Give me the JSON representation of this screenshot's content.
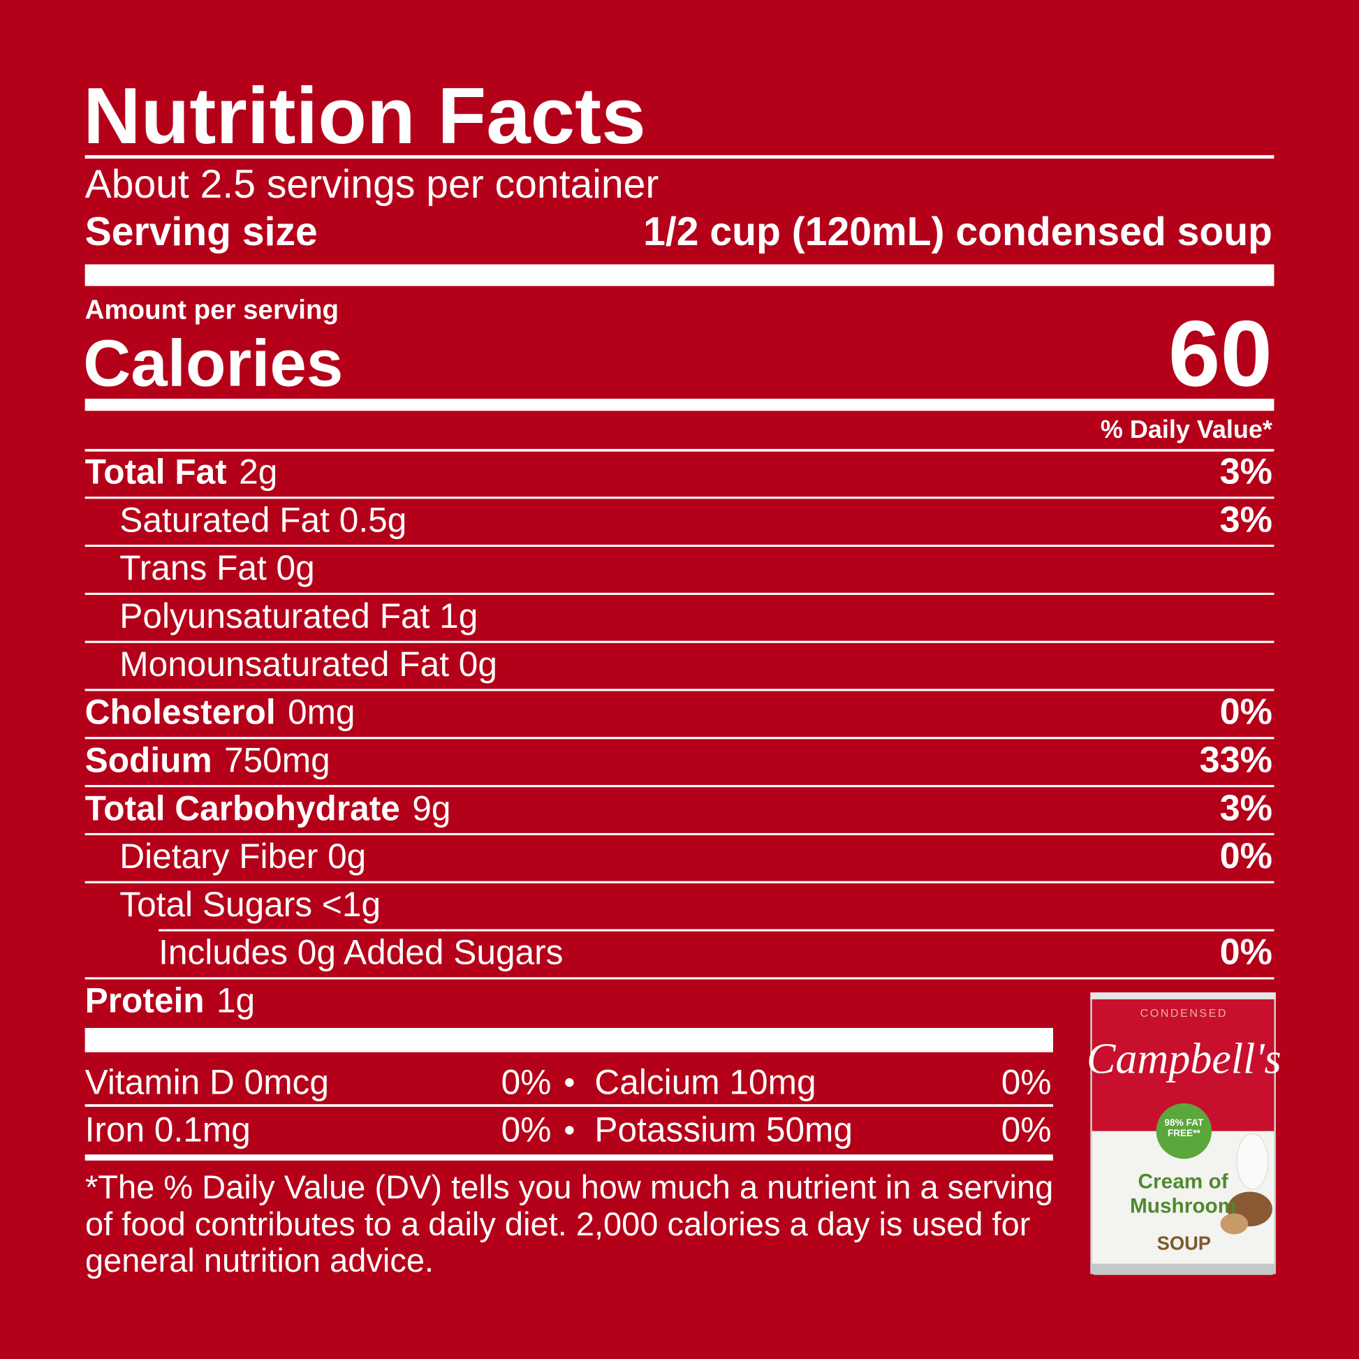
{
  "header": {
    "title": "Nutrition Facts",
    "servings": "About 2.5 servings per container",
    "serving_size_label": "Serving size",
    "serving_size_value": "1/2 cup (120mL) condensed soup"
  },
  "calories": {
    "amount_label": "Amount per serving",
    "label": "Calories",
    "value": "60"
  },
  "dv_header": "% Daily Value*",
  "nutrients": [
    {
      "name": "Total Fat",
      "amount": "2g",
      "dv": "3%"
    },
    {
      "name": "Saturated Fat 0.5g",
      "dv": "3%"
    },
    {
      "name": "Trans Fat 0g"
    },
    {
      "name": "Polyunsaturated Fat 1g"
    },
    {
      "name": "Monounsaturated Fat 0g"
    },
    {
      "name": "Cholesterol",
      "amount": "0mg",
      "dv": "0%"
    },
    {
      "name": "Sodium",
      "amount": "750mg",
      "dv": "33%"
    },
    {
      "name": "Total Carbohydrate",
      "amount": "9g",
      "dv": "3%"
    },
    {
      "name": "Dietary Fiber 0g",
      "dv": "0%"
    },
    {
      "name": "Total Sugars <1g"
    },
    {
      "name": "Includes 0g Added Sugars",
      "dv": "0%"
    },
    {
      "name": "Protein",
      "amount": "1g"
    }
  ],
  "vitamins": [
    [
      {
        "name": "Vitamin D 0mcg",
        "dv": "0%"
      },
      {
        "name": "Calcium 10mg",
        "dv": "0%"
      }
    ],
    [
      {
        "name": "Iron 0.1mg",
        "dv": "0%"
      },
      {
        "name": "Potassium 50mg",
        "dv": "0%"
      }
    ]
  ],
  "footnote": "*The % Daily Value (DV) tells you how much a nutrient in a serving of food contributes to a daily diet. 2,000 calories a day is used for general nutrition advice.",
  "product": {
    "condensed": "CONDENSED",
    "brand": "Campbell's",
    "badge": "98% FAT FREE**",
    "flavor": "Cream of Mushroom",
    "soup": "SOUP"
  }
}
